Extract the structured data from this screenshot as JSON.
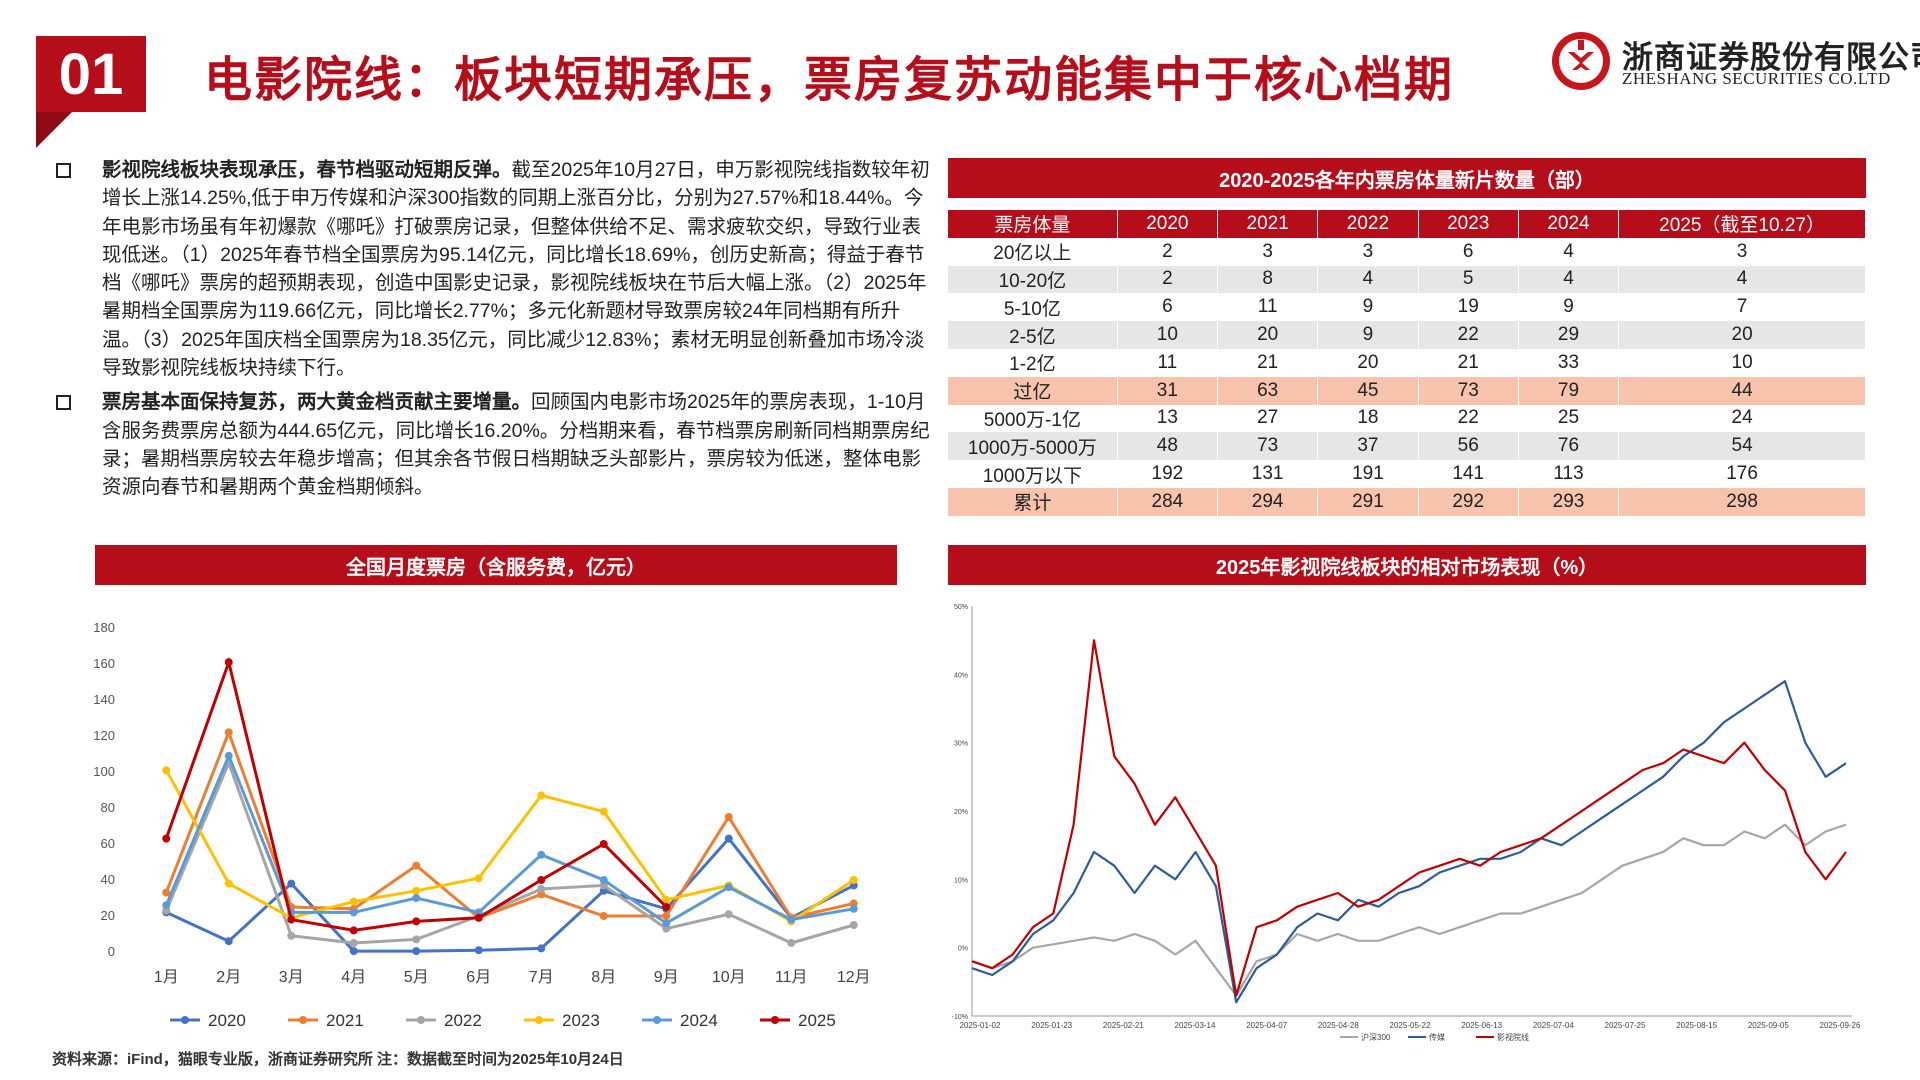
{
  "header": {
    "badge": "01",
    "title": "电影院线：板块短期承压，票房复苏动能集中于核心档期",
    "logo_cn": "浙商证券股份有限公司",
    "logo_en": "ZHESHANG SECURITIES CO.LTD"
  },
  "colors": {
    "brand_red": "#b50d1a",
    "highlight_row": "#f7c3ad"
  },
  "paragraphs": [
    {
      "bold": "影视院线板块表现承压，春节档驱动短期反弹。",
      "text": "截至2025年10月27日，申万影视院线指数较年初增长上涨14.25%,低于申万传媒和沪深300指数的同期上涨百分比，分别为27.57%和18.44%。今年电影市场虽有年初爆款《哪吒》打破票房记录，但整体供给不足、需求疲软交织，导致行业表现低迷。（1）2025年春节档全国票房为95.14亿元，同比增长18.69%，创历史新高；得益于春节档《哪吒》票房的超预期表现，创造中国影史记录，影视院线板块在节后大幅上涨。（2）2025年暑期档全国票房为119.66亿元，同比增长2.77%；多元化新题材导致票房较24年同档期有所升温。（3）2025年国庆档全国票房为18.35亿元，同比减少12.83%；素材无明显创新叠加市场冷淡导致影视院线板块持续下行。"
    },
    {
      "bold": "票房基本面保持复苏，两大黄金档贡献主要增量。",
      "text": "回顾国内电影市场2025年的票房表现，1-10月含服务费票房总额为444.65亿元，同比增长16.20%。分档期来看，春节档票房刷新同档期票房纪录；暑期档票房较去年稳步增高；但其余各节假日档期缺乏头部影片，票房较为低迷，整体电影资源向春节和暑期两个黄金档期倾斜。"
    }
  ],
  "table": {
    "title": "2020-2025各年内票房体量新片数量（部）",
    "headers": [
      "票房体量",
      "2020",
      "2021",
      "2022",
      "2023",
      "2024",
      "2025（截至10.27）"
    ],
    "rows": [
      [
        "20亿以上",
        "2",
        "3",
        "3",
        "6",
        "4",
        "3"
      ],
      [
        "10-20亿",
        "2",
        "8",
        "4",
        "5",
        "4",
        "4"
      ],
      [
        "5-10亿",
        "6",
        "11",
        "9",
        "19",
        "9",
        "7"
      ],
      [
        "2-5亿",
        "10",
        "20",
        "9",
        "22",
        "29",
        "20"
      ],
      [
        "1-2亿",
        "11",
        "21",
        "20",
        "21",
        "33",
        "10"
      ],
      [
        "过亿",
        "31",
        "63",
        "45",
        "73",
        "79",
        "44"
      ],
      [
        "5000万-1亿",
        "13",
        "27",
        "18",
        "22",
        "25",
        "24"
      ],
      [
        "1000万-5000万",
        "48",
        "73",
        "37",
        "56",
        "76",
        "54"
      ],
      [
        "1000万以下",
        "192",
        "131",
        "191",
        "141",
        "113",
        "176"
      ],
      [
        "累计",
        "284",
        "294",
        "291",
        "292",
        "293",
        "298"
      ]
    ]
  },
  "chart_data": [
    {
      "type": "line",
      "title": "全国月度票房（含服务费，亿元）",
      "categories": [
        "1月",
        "2月",
        "3月",
        "4月",
        "5月",
        "6月",
        "7月",
        "8月",
        "9月",
        "10月",
        "11月",
        "12月"
      ],
      "ylim": [
        0,
        180
      ],
      "yticks": [
        "0",
        "20",
        "40",
        "60",
        "80",
        "100",
        "120",
        "140",
        "160",
        "180"
      ],
      "legend_position": "bottom",
      "series": [
        {
          "name": "2020",
          "color": "#4472c4",
          "values": [
            22,
            6,
            38,
            0.5,
            0.5,
            1,
            2,
            34,
            24,
            63,
            19,
            37
          ]
        },
        {
          "name": "2021",
          "color": "#ed7d31",
          "values": [
            33,
            122,
            25,
            24,
            48,
            19,
            32,
            20,
            20,
            75,
            19,
            27
          ]
        },
        {
          "name": "2022",
          "color": "#a5a5a5",
          "values": [
            23,
            105,
            9,
            5,
            7,
            20,
            35,
            37,
            13,
            21,
            5,
            15
          ]
        },
        {
          "name": "2023",
          "color": "#ffc000",
          "values": [
            101,
            38,
            19,
            28,
            34,
            41,
            87,
            78,
            29,
            37,
            17,
            40
          ]
        },
        {
          "name": "2024",
          "color": "#5b9bd5",
          "values": [
            26,
            109,
            22,
            22,
            30,
            22,
            54,
            40,
            16,
            36,
            18,
            24
          ]
        },
        {
          "name": "2025",
          "color": "#c00000",
          "values": [
            63,
            161,
            18,
            12,
            17,
            19,
            40,
            60,
            25,
            null,
            null,
            null
          ]
        }
      ]
    },
    {
      "type": "line",
      "title": "2025年影视院线板块的相对市场表现（%）",
      "x_ticks": [
        "2025-01-02",
        "2025-01-23",
        "2025-02-21",
        "2025-03-14",
        "2025-04-07",
        "2025-04-28",
        "2025-05-22",
        "2025-06-13",
        "2025-07-04",
        "2025-07-25",
        "2025-08-15",
        "2025-09-05",
        "2025-09-26"
      ],
      "ylim": [
        -10,
        50
      ],
      "yticks": [
        "-10%",
        "0%",
        "10%",
        "20%",
        "30%",
        "40%",
        "50%"
      ],
      "legend_position": "bottom",
      "series": [
        {
          "name": "沪深300",
          "color": "#a6a6a6",
          "values": [
            -2,
            -3,
            -2,
            0,
            0.5,
            1,
            1.5,
            1,
            2,
            1,
            -1,
            1,
            -3,
            -7,
            -2,
            -1,
            2,
            1,
            2,
            1,
            1,
            2,
            3,
            2,
            3,
            4,
            5,
            5,
            6,
            7,
            8,
            10,
            12,
            13,
            14,
            16,
            15,
            15,
            17,
            16,
            18,
            15,
            17,
            18
          ]
        },
        {
          "name": "传媒",
          "color": "#2e5c9a",
          "values": [
            -3,
            -4,
            -2,
            2,
            4,
            8,
            14,
            12,
            8,
            12,
            10,
            14,
            9,
            -8,
            -3,
            -1,
            3,
            5,
            4,
            7,
            6,
            8,
            9,
            11,
            12,
            13,
            13,
            14,
            16,
            15,
            17,
            19,
            21,
            23,
            25,
            28,
            30,
            33,
            35,
            37,
            39,
            30,
            25,
            27
          ]
        },
        {
          "name": "影视院线",
          "color": "#c00000",
          "values": [
            -2,
            -3,
            -1,
            3,
            5,
            18,
            45,
            28,
            24,
            18,
            22,
            17,
            12,
            -7,
            3,
            4,
            6,
            7,
            8,
            6,
            7,
            9,
            11,
            12,
            13,
            12,
            14,
            15,
            16,
            18,
            20,
            22,
            24,
            26,
            27,
            29,
            28,
            27,
            30,
            26,
            23,
            14,
            10,
            14
          ]
        }
      ]
    }
  ],
  "footer": "资料来源：iFind，猫眼专业版，浙商证券研究所    注：数据截至时间为2025年10月24日"
}
